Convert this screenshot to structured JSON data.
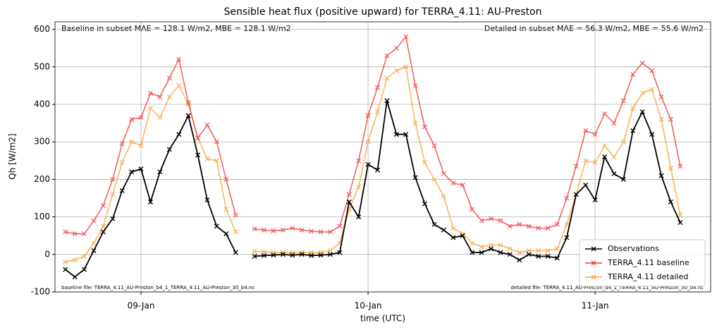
{
  "chart_data": {
    "type": "line",
    "title": "Sensible heat flux (positive upward) for TERRA_4.11: AU-Preston",
    "x_label": "time (UTC)",
    "y_label": "Qh [W/m2]",
    "annotations": [
      "Baseline in subset MAE = 128.1 W/m2, MBE = 128.1 W/m2",
      "Detailed in subset MAE = 56.3 W/m2, MBE = 55.6 W/m2",
      "baseline file: TERRA_4.11_AU-Preston_b4_1_TERRA_4.11_AU-Preston_30_b4.nc",
      "detailed file: TERRA_4.11_AU-Preston_d4_1_TERRA_4.11_AU-Preston_30_d4.nc"
    ],
    "x": [
      8.6667,
      8.7083,
      8.75,
      8.7917,
      8.8333,
      8.875,
      8.9167,
      8.9583,
      9,
      9.0417,
      9.0833,
      9.125,
      9.1667,
      9.2083,
      9.25,
      9.2917,
      9.3333,
      9.375,
      9.4167,
      9.4583,
      9.5,
      9.5417,
      9.5833,
      9.625,
      9.6667,
      9.7083,
      9.75,
      9.7917,
      9.8333,
      9.875,
      9.9167,
      9.9583,
      10,
      10.0417,
      10.0833,
      10.125,
      10.1667,
      10.2083,
      10.25,
      10.2917,
      10.3333,
      10.375,
      10.4167,
      10.4583,
      10.5,
      10.5417,
      10.5833,
      10.625,
      10.6667,
      10.7083,
      10.75,
      10.7917,
      10.8333,
      10.875,
      10.9167,
      10.9583,
      11,
      11.0417,
      11.0833,
      11.125,
      11.1667,
      11.2083,
      11.25,
      11.2917,
      11.3333,
      11.375
    ],
    "series": [
      {
        "name": "Observations",
        "color": "#000000",
        "values": [
          -40,
          -60,
          -40,
          10,
          60,
          95,
          170,
          220,
          228,
          140,
          220,
          280,
          320,
          370,
          265,
          145,
          75,
          55,
          5,
          null,
          -5,
          -3,
          -2,
          0,
          -2,
          0,
          -3,
          -2,
          0,
          5,
          140,
          100,
          240,
          225,
          410,
          320,
          320,
          205,
          135,
          80,
          65,
          45,
          50,
          5,
          5,
          15,
          5,
          0,
          -15,
          0,
          -5,
          -5,
          -10,
          45,
          160,
          185,
          145,
          260,
          215,
          200,
          330,
          380,
          320,
          210,
          140,
          85
        ]
      },
      {
        "name": "TERRA_4.11 baseline",
        "color": "#f03c3c",
        "values": [
          60,
          55,
          55,
          90,
          130,
          200,
          295,
          360,
          365,
          430,
          420,
          470,
          520,
          405,
          310,
          345,
          300,
          200,
          105,
          null,
          68,
          65,
          63,
          65,
          70,
          65,
          62,
          60,
          60,
          75,
          160,
          250,
          370,
          445,
          530,
          550,
          580,
          450,
          340,
          290,
          215,
          190,
          185,
          120,
          90,
          95,
          90,
          75,
          80,
          75,
          70,
          70,
          80,
          150,
          235,
          330,
          320,
          375,
          350,
          410,
          480,
          510,
          490,
          420,
          360,
          235
        ]
      },
      {
        "name": "TERRA_4.11 detailed",
        "color": "#f7a33a",
        "values": [
          -20,
          -15,
          -5,
          30,
          75,
          160,
          245,
          300,
          290,
          390,
          365,
          420,
          450,
          400,
          310,
          255,
          250,
          120,
          60,
          null,
          8,
          7,
          5,
          5,
          5,
          5,
          5,
          5,
          10,
          30,
          120,
          180,
          300,
          380,
          470,
          490,
          500,
          350,
          245,
          200,
          155,
          70,
          55,
          30,
          20,
          25,
          25,
          15,
          5,
          10,
          10,
          10,
          15,
          80,
          160,
          250,
          245,
          290,
          260,
          300,
          390,
          430,
          440,
          360,
          230,
          105
        ]
      }
    ],
    "xlim": [
      8.621,
      11.509
    ],
    "xticks": [
      {
        "value": 9,
        "label": "09-Jan"
      },
      {
        "value": 10,
        "label": "10-Jan"
      },
      {
        "value": 11,
        "label": "11-Jan"
      }
    ],
    "ylim": [
      -100,
      620
    ],
    "yticks": [
      -100,
      0,
      100,
      200,
      300,
      400,
      500,
      600
    ],
    "grid": true,
    "legend": "lower right"
  }
}
